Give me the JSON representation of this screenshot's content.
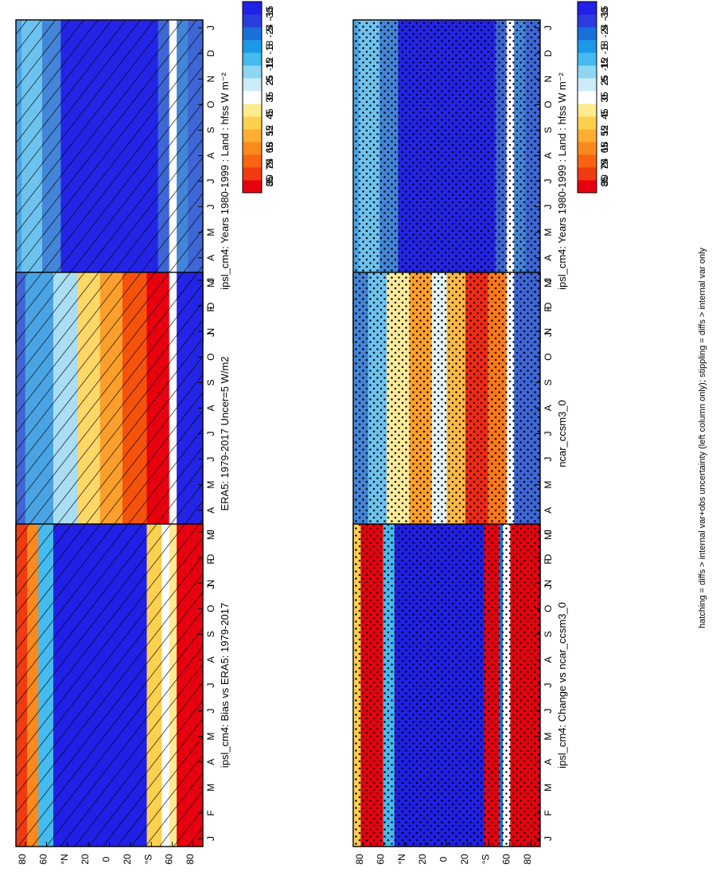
{
  "colors": {
    "hfss": [
      "#e8000f",
      "#f02a16",
      "#f5520c",
      "#fb7a18",
      "#fd9f2c",
      "#feba44",
      "#fdd768",
      "#feeb9a",
      "#ffffff",
      "#e2f4fb",
      "#a9def4",
      "#6ec3ee",
      "#4aa4e4",
      "#4385d8",
      "#3e66d6",
      "#3a46d8",
      "#2424e6"
    ],
    "diff": [
      "#e8000f",
      "#f03a12",
      "#f8640f",
      "#fb8a1e",
      "#fdae32",
      "#fed050",
      "#feeb90",
      "#ffffff",
      "#ccecfa",
      "#8fd6f3",
      "#45bbef",
      "#1c99e6",
      "#1970d8",
      "#2a3ee0",
      "#2020e6"
    ]
  },
  "footer": "hatching = diffs > internal var+obs uncertainty (left column only); stippling = diffs > internal var only",
  "chart_data": [
    {
      "type": "heatmap",
      "title": "ipsl_cm4: Years 1980-1999 : Land : hfss W m⁻²",
      "x": [
        "J",
        "F",
        "M",
        "A",
        "M",
        "J",
        "J",
        "A",
        "S",
        "O",
        "N",
        "D",
        "J"
      ],
      "y": [
        "80",
        "60",
        "°N",
        "20",
        "0",
        "20",
        "°S",
        "60",
        "80"
      ],
      "colorbar": [
        "85",
        "75",
        "65",
        "55",
        "45",
        "35",
        "25",
        "15",
        "5",
        "-5",
        "-15"
      ],
      "hatching": true,
      "stippling": false
    },
    {
      "type": "heatmap",
      "title": "ERA5: 1979-2017 Uncer=5 W/m2",
      "x": [
        "J",
        "F",
        "M",
        "A",
        "M",
        "J",
        "J",
        "A",
        "S",
        "O",
        "N",
        "D",
        "J"
      ],
      "y": [
        "80",
        "60",
        "°N",
        "20",
        "0",
        "20",
        "°S",
        "60",
        "80"
      ],
      "colorbar": [
        "85",
        "75",
        "65",
        "55",
        "45",
        "35",
        "25",
        "15",
        "5",
        "-5",
        "-15"
      ],
      "hatching": true,
      "stippling": false
    },
    {
      "type": "heatmap",
      "title": "ipsl_cm4: Bias vs ERA5: 1979-2017",
      "x": [
        "J",
        "F",
        "M",
        "A",
        "M",
        "J",
        "J",
        "A",
        "S",
        "O",
        "N",
        "D",
        "J"
      ],
      "y": [
        "80",
        "60",
        "°N",
        "20",
        "0",
        "20",
        "°S",
        "60",
        "80"
      ],
      "colorbar": [
        "30",
        "24",
        "18",
        "12",
        "6",
        "0",
        "-6",
        "-12",
        "-18",
        "-24",
        "-30"
      ],
      "hatching": true,
      "stippling": false
    },
    {
      "type": "heatmap",
      "title": "ipsl_cm4: Years 1980-1999 : Land : hfss W m⁻²",
      "x": [
        "J",
        "F",
        "M",
        "A",
        "M",
        "J",
        "J",
        "A",
        "S",
        "O",
        "N",
        "D",
        "J"
      ],
      "y": [
        "80",
        "60",
        "°N",
        "20",
        "0",
        "20",
        "°S",
        "60",
        "80"
      ],
      "colorbar": [
        "85",
        "75",
        "65",
        "55",
        "45",
        "35",
        "25",
        "15",
        "5",
        "-5",
        "-15"
      ],
      "hatching": false,
      "stippling": true
    },
    {
      "type": "heatmap",
      "title": "ncar_ccsm3_0",
      "x": [
        "J",
        "F",
        "M",
        "A",
        "M",
        "J",
        "J",
        "A",
        "S",
        "O",
        "N",
        "D",
        "J"
      ],
      "y": [
        "80",
        "60",
        "°N",
        "20",
        "0",
        "20",
        "°S",
        "60",
        "80"
      ],
      "colorbar": [
        "85",
        "75",
        "65",
        "55",
        "45",
        "35",
        "25",
        "15",
        "5",
        "-5",
        "-15"
      ],
      "hatching": false,
      "stippling": true
    },
    {
      "type": "heatmap",
      "title": "ipsl_cm4: Change vs ncar_ccsm3_0",
      "x": [
        "J",
        "F",
        "M",
        "A",
        "M",
        "J",
        "J",
        "A",
        "S",
        "O",
        "N",
        "D",
        "J"
      ],
      "y": [
        "80",
        "60",
        "°N",
        "20",
        "0",
        "20",
        "°S",
        "60",
        "80"
      ],
      "colorbar": [
        "30",
        "24",
        "18",
        "12",
        "6",
        "0",
        "-6",
        "-12",
        "-18",
        "-24",
        "-30"
      ],
      "hatching": false,
      "stippling": true
    }
  ]
}
